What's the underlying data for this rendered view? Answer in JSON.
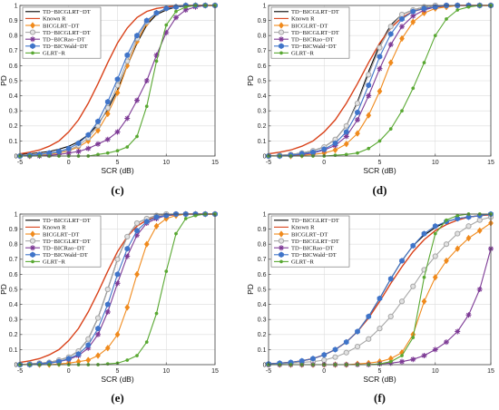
{
  "chart_data": [
    {
      "panel": "(c)",
      "type": "line",
      "xlabel": "SCR (dB)",
      "ylabel": "PD",
      "xlim": [
        -5,
        15
      ],
      "ylim": [
        0,
        1
      ],
      "xticks": [
        -5,
        0,
        5,
        10,
        15
      ],
      "yticks": [
        0,
        0.1,
        0.2,
        0.3,
        0.4,
        0.5,
        0.6,
        0.7,
        0.8,
        0.9,
        1
      ],
      "grid": true,
      "legend": "top-left",
      "x": [
        -5,
        -4,
        -3,
        -2,
        -1,
        0,
        1,
        2,
        3,
        4,
        5,
        6,
        7,
        8,
        9,
        10,
        11,
        12,
        13,
        14,
        15
      ],
      "series": [
        {
          "name": "TD−BICGLRT−DT",
          "color": "#000000",
          "marker": "none",
          "values": [
            0.01,
            0.015,
            0.022,
            0.03,
            0.045,
            0.065,
            0.095,
            0.14,
            0.21,
            0.31,
            0.44,
            0.6,
            0.75,
            0.87,
            0.94,
            0.97,
            0.99,
            0.995,
            1,
            1,
            1
          ]
        },
        {
          "name": "Known R",
          "color": "#d9421a",
          "marker": "none",
          "values": [
            0.015,
            0.025,
            0.04,
            0.065,
            0.1,
            0.16,
            0.24,
            0.35,
            0.48,
            0.62,
            0.75,
            0.85,
            0.92,
            0.96,
            0.98,
            0.99,
            0.995,
            1,
            1,
            1,
            1
          ]
        },
        {
          "name": "BICGLRT−DT",
          "color": "#f08a1c",
          "marker": "diamond",
          "values": [
            0,
            0,
            0.005,
            0.01,
            0.02,
            0.035,
            0.06,
            0.1,
            0.17,
            0.28,
            0.42,
            0.6,
            0.76,
            0.88,
            0.95,
            0.98,
            0.99,
            1,
            1,
            1,
            1
          ]
        },
        {
          "name": "TD−BICGLRT−DT",
          "color": "#a7a7a7",
          "marker": "circle",
          "values": [
            0,
            0.005,
            0.01,
            0.015,
            0.025,
            0.04,
            0.07,
            0.12,
            0.2,
            0.32,
            0.47,
            0.63,
            0.78,
            0.89,
            0.95,
            0.98,
            0.99,
            1,
            1,
            1,
            1
          ]
        },
        {
          "name": "TD−BICRao−DT",
          "color": "#7d3a95",
          "marker": "star",
          "values": [
            0,
            0,
            0,
            0.005,
            0.01,
            0.02,
            0.03,
            0.05,
            0.08,
            0.11,
            0.16,
            0.25,
            0.37,
            0.5,
            0.67,
            0.82,
            0.92,
            0.97,
            0.99,
            1,
            1
          ]
        },
        {
          "name": "TD−BICWald−DT",
          "color": "#3f74c9",
          "marker": "hexagon",
          "values": [
            0,
            0.005,
            0.01,
            0.02,
            0.03,
            0.05,
            0.085,
            0.14,
            0.23,
            0.36,
            0.51,
            0.67,
            0.8,
            0.9,
            0.95,
            0.98,
            0.99,
            1,
            1,
            1,
            1
          ]
        },
        {
          "name": "GLRT−R",
          "color": "#59a832",
          "marker": "dot",
          "values": [
            0,
            0,
            0,
            0,
            0,
            0,
            0,
            0,
            0.01,
            0.02,
            0.035,
            0.06,
            0.13,
            0.33,
            0.63,
            0.87,
            0.96,
            0.99,
            1,
            1,
            1
          ]
        }
      ]
    },
    {
      "panel": "(d)",
      "type": "line",
      "xlabel": "SCR (dB)",
      "ylabel": "PD",
      "xlim": [
        -5,
        15
      ],
      "ylim": [
        0,
        1
      ],
      "xticks": [
        -5,
        0,
        5,
        10,
        15
      ],
      "yticks": [
        0,
        0.1,
        0.2,
        0.3,
        0.4,
        0.5,
        0.6,
        0.7,
        0.8,
        0.9,
        1
      ],
      "grid": true,
      "legend": "top-left",
      "x": [
        -5,
        -4,
        -3,
        -2,
        -1,
        0,
        1,
        2,
        3,
        4,
        5,
        6,
        7,
        8,
        9,
        10,
        11,
        12,
        13,
        14,
        15
      ],
      "series": [
        {
          "name": "TD−BICGLRT−DT",
          "color": "#000000",
          "marker": "none",
          "values": [
            0,
            0.005,
            0.01,
            0.02,
            0.035,
            0.06,
            0.11,
            0.2,
            0.36,
            0.56,
            0.74,
            0.87,
            0.94,
            0.97,
            0.99,
            1,
            1,
            1,
            1,
            1,
            1
          ]
        },
        {
          "name": "Known R",
          "color": "#d9421a",
          "marker": "none",
          "values": [
            0.015,
            0.025,
            0.04,
            0.065,
            0.1,
            0.16,
            0.24,
            0.35,
            0.48,
            0.62,
            0.75,
            0.85,
            0.92,
            0.96,
            0.98,
            0.99,
            0.995,
            1,
            1,
            1,
            1
          ]
        },
        {
          "name": "BICGLRT−DT",
          "color": "#f08a1c",
          "marker": "diamond",
          "values": [
            0,
            0,
            0,
            0.005,
            0.01,
            0.02,
            0.04,
            0.08,
            0.15,
            0.27,
            0.43,
            0.62,
            0.78,
            0.89,
            0.95,
            0.98,
            0.99,
            1,
            1,
            1,
            1
          ]
        },
        {
          "name": "TD−BICGLRT−DT",
          "color": "#a7a7a7",
          "marker": "circle",
          "values": [
            0,
            0.005,
            0.01,
            0.02,
            0.035,
            0.06,
            0.11,
            0.2,
            0.35,
            0.54,
            0.72,
            0.86,
            0.94,
            0.97,
            0.99,
            1,
            1,
            1,
            1,
            1,
            1
          ]
        },
        {
          "name": "TD−BICRao−DT",
          "color": "#7d3a95",
          "marker": "star",
          "values": [
            0,
            0,
            0.005,
            0.01,
            0.02,
            0.04,
            0.07,
            0.13,
            0.24,
            0.4,
            0.58,
            0.74,
            0.86,
            0.93,
            0.97,
            0.99,
            1,
            1,
            1,
            1,
            1
          ]
        },
        {
          "name": "TD−BICWald−DT",
          "color": "#3f74c9",
          "marker": "hexagon",
          "values": [
            0,
            0,
            0.005,
            0.015,
            0.025,
            0.045,
            0.085,
            0.16,
            0.29,
            0.47,
            0.66,
            0.81,
            0.91,
            0.96,
            0.98,
            0.99,
            1,
            1,
            1,
            1,
            1
          ]
        },
        {
          "name": "GLRT−R",
          "color": "#59a832",
          "marker": "dot",
          "values": [
            0,
            0,
            0,
            0,
            0,
            0,
            0.005,
            0.01,
            0.02,
            0.05,
            0.1,
            0.18,
            0.3,
            0.45,
            0.62,
            0.8,
            0.91,
            0.97,
            0.99,
            1,
            1
          ]
        }
      ]
    },
    {
      "panel": "(e)",
      "type": "line",
      "xlabel": "SCR (dB)",
      "ylabel": "PD",
      "xlim": [
        -5,
        15
      ],
      "ylim": [
        0,
        1
      ],
      "xticks": [
        -5,
        0,
        5,
        10,
        15
      ],
      "yticks": [
        0,
        0.1,
        0.2,
        0.3,
        0.4,
        0.5,
        0.6,
        0.7,
        0.8,
        0.9,
        1
      ],
      "grid": true,
      "legend": "top-left",
      "x": [
        -5,
        -4,
        -3,
        -2,
        -1,
        0,
        1,
        2,
        3,
        4,
        5,
        6,
        7,
        8,
        9,
        10,
        11,
        12,
        13,
        14,
        15
      ],
      "series": [
        {
          "name": "TD−BICGLRT−DT",
          "color": "#000000",
          "marker": "none",
          "values": [
            0,
            0.005,
            0.01,
            0.015,
            0.03,
            0.05,
            0.09,
            0.17,
            0.31,
            0.5,
            0.7,
            0.85,
            0.94,
            0.97,
            0.99,
            1,
            1,
            1,
            1,
            1,
            1
          ]
        },
        {
          "name": "Known R",
          "color": "#d9421a",
          "marker": "none",
          "values": [
            0.015,
            0.025,
            0.04,
            0.065,
            0.1,
            0.16,
            0.24,
            0.35,
            0.48,
            0.62,
            0.75,
            0.85,
            0.92,
            0.96,
            0.98,
            0.99,
            0.995,
            1,
            1,
            1,
            1
          ]
        },
        {
          "name": "BICGLRT−DT",
          "color": "#f08a1c",
          "marker": "diamond",
          "values": [
            0,
            0,
            0,
            0,
            0.005,
            0.01,
            0.02,
            0.03,
            0.06,
            0.11,
            0.2,
            0.38,
            0.6,
            0.8,
            0.92,
            0.97,
            0.99,
            1,
            1,
            1,
            1
          ]
        },
        {
          "name": "TD−BICGLRT−DT",
          "color": "#a7a7a7",
          "marker": "circle",
          "values": [
            0,
            0.005,
            0.01,
            0.015,
            0.03,
            0.05,
            0.09,
            0.17,
            0.31,
            0.5,
            0.7,
            0.85,
            0.94,
            0.97,
            0.99,
            1,
            1,
            1,
            1,
            1,
            1
          ]
        },
        {
          "name": "TD−BICRao−DT",
          "color": "#7d3a95",
          "marker": "star",
          "values": [
            0,
            0,
            0.005,
            0.01,
            0.02,
            0.035,
            0.06,
            0.11,
            0.2,
            0.35,
            0.54,
            0.72,
            0.86,
            0.94,
            0.97,
            0.99,
            1,
            1,
            1,
            1,
            1
          ]
        },
        {
          "name": "TD−BICWald−DT",
          "color": "#3f74c9",
          "marker": "hexagon",
          "values": [
            0,
            0,
            0.005,
            0.01,
            0.02,
            0.04,
            0.07,
            0.13,
            0.24,
            0.4,
            0.6,
            0.77,
            0.89,
            0.95,
            0.98,
            0.99,
            1,
            1,
            1,
            1,
            1
          ]
        },
        {
          "name": "GLRT−R",
          "color": "#59a832",
          "marker": "dot",
          "values": [
            0,
            0,
            0,
            0,
            0,
            0,
            0,
            0,
            0,
            0.005,
            0.01,
            0.03,
            0.06,
            0.15,
            0.34,
            0.62,
            0.87,
            0.97,
            0.99,
            1,
            1
          ]
        }
      ]
    },
    {
      "panel": "(f)",
      "type": "line",
      "xlabel": "SCR (dB)",
      "ylabel": "PD",
      "xlim": [
        -5,
        15
      ],
      "ylim": [
        0,
        1
      ],
      "xticks": [
        -5,
        0,
        5,
        10,
        15
      ],
      "yticks": [
        0,
        0.1,
        0.2,
        0.3,
        0.4,
        0.5,
        0.6,
        0.7,
        0.8,
        0.9,
        1
      ],
      "grid": true,
      "legend": "top-left",
      "x": [
        -5,
        -4,
        -3,
        -2,
        -1,
        0,
        1,
        2,
        3,
        4,
        5,
        6,
        7,
        8,
        9,
        10,
        11,
        12,
        13,
        14,
        15
      ],
      "series": [
        {
          "name": "TD−BICGLRT−DT",
          "color": "#000000",
          "marker": "none",
          "values": [
            0.005,
            0.01,
            0.015,
            0.025,
            0.04,
            0.065,
            0.1,
            0.15,
            0.22,
            0.32,
            0.44,
            0.57,
            0.69,
            0.79,
            0.86,
            0.91,
            0.95,
            0.97,
            0.98,
            0.99,
            1
          ]
        },
        {
          "name": "Known R",
          "color": "#d9421a",
          "marker": "none",
          "values": [
            0.005,
            0.01,
            0.015,
            0.025,
            0.04,
            0.065,
            0.1,
            0.15,
            0.22,
            0.31,
            0.42,
            0.54,
            0.65,
            0.75,
            0.83,
            0.89,
            0.93,
            0.96,
            0.98,
            0.99,
            0.995
          ]
        },
        {
          "name": "BICGLRT−DT",
          "color": "#f08a1c",
          "marker": "diamond",
          "values": [
            0,
            0,
            0,
            0,
            0,
            0,
            0,
            0,
            0.005,
            0.01,
            0.02,
            0.04,
            0.08,
            0.2,
            0.42,
            0.58,
            0.69,
            0.77,
            0.84,
            0.89,
            0.94
          ]
        },
        {
          "name": "TD−BICGLRT−DT",
          "color": "#a7a7a7",
          "marker": "circle",
          "values": [
            0,
            0.005,
            0.01,
            0.015,
            0.02,
            0.03,
            0.05,
            0.08,
            0.12,
            0.17,
            0.24,
            0.32,
            0.42,
            0.52,
            0.63,
            0.72,
            0.8,
            0.87,
            0.92,
            0.96,
            0.98
          ]
        },
        {
          "name": "TD−BICRao−DT",
          "color": "#7d3a95",
          "marker": "star",
          "values": [
            0,
            0,
            0,
            0,
            0,
            0,
            0,
            0,
            0,
            0,
            0.005,
            0.01,
            0.02,
            0.035,
            0.06,
            0.1,
            0.15,
            0.22,
            0.33,
            0.5,
            0.77
          ]
        },
        {
          "name": "TD−BICWald−DT",
          "color": "#3f74c9",
          "marker": "hexagon",
          "values": [
            0.005,
            0.01,
            0.015,
            0.025,
            0.04,
            0.065,
            0.1,
            0.15,
            0.22,
            0.32,
            0.44,
            0.57,
            0.69,
            0.79,
            0.87,
            0.92,
            0.95,
            0.97,
            0.98,
            0.99,
            1
          ]
        },
        {
          "name": "GLRT−R",
          "color": "#59a832",
          "marker": "dot",
          "values": [
            0,
            0,
            0,
            0,
            0,
            0,
            0,
            0,
            0,
            0,
            0.005,
            0.02,
            0.06,
            0.18,
            0.58,
            0.87,
            0.96,
            0.99,
            1,
            1,
            1
          ]
        }
      ]
    }
  ]
}
